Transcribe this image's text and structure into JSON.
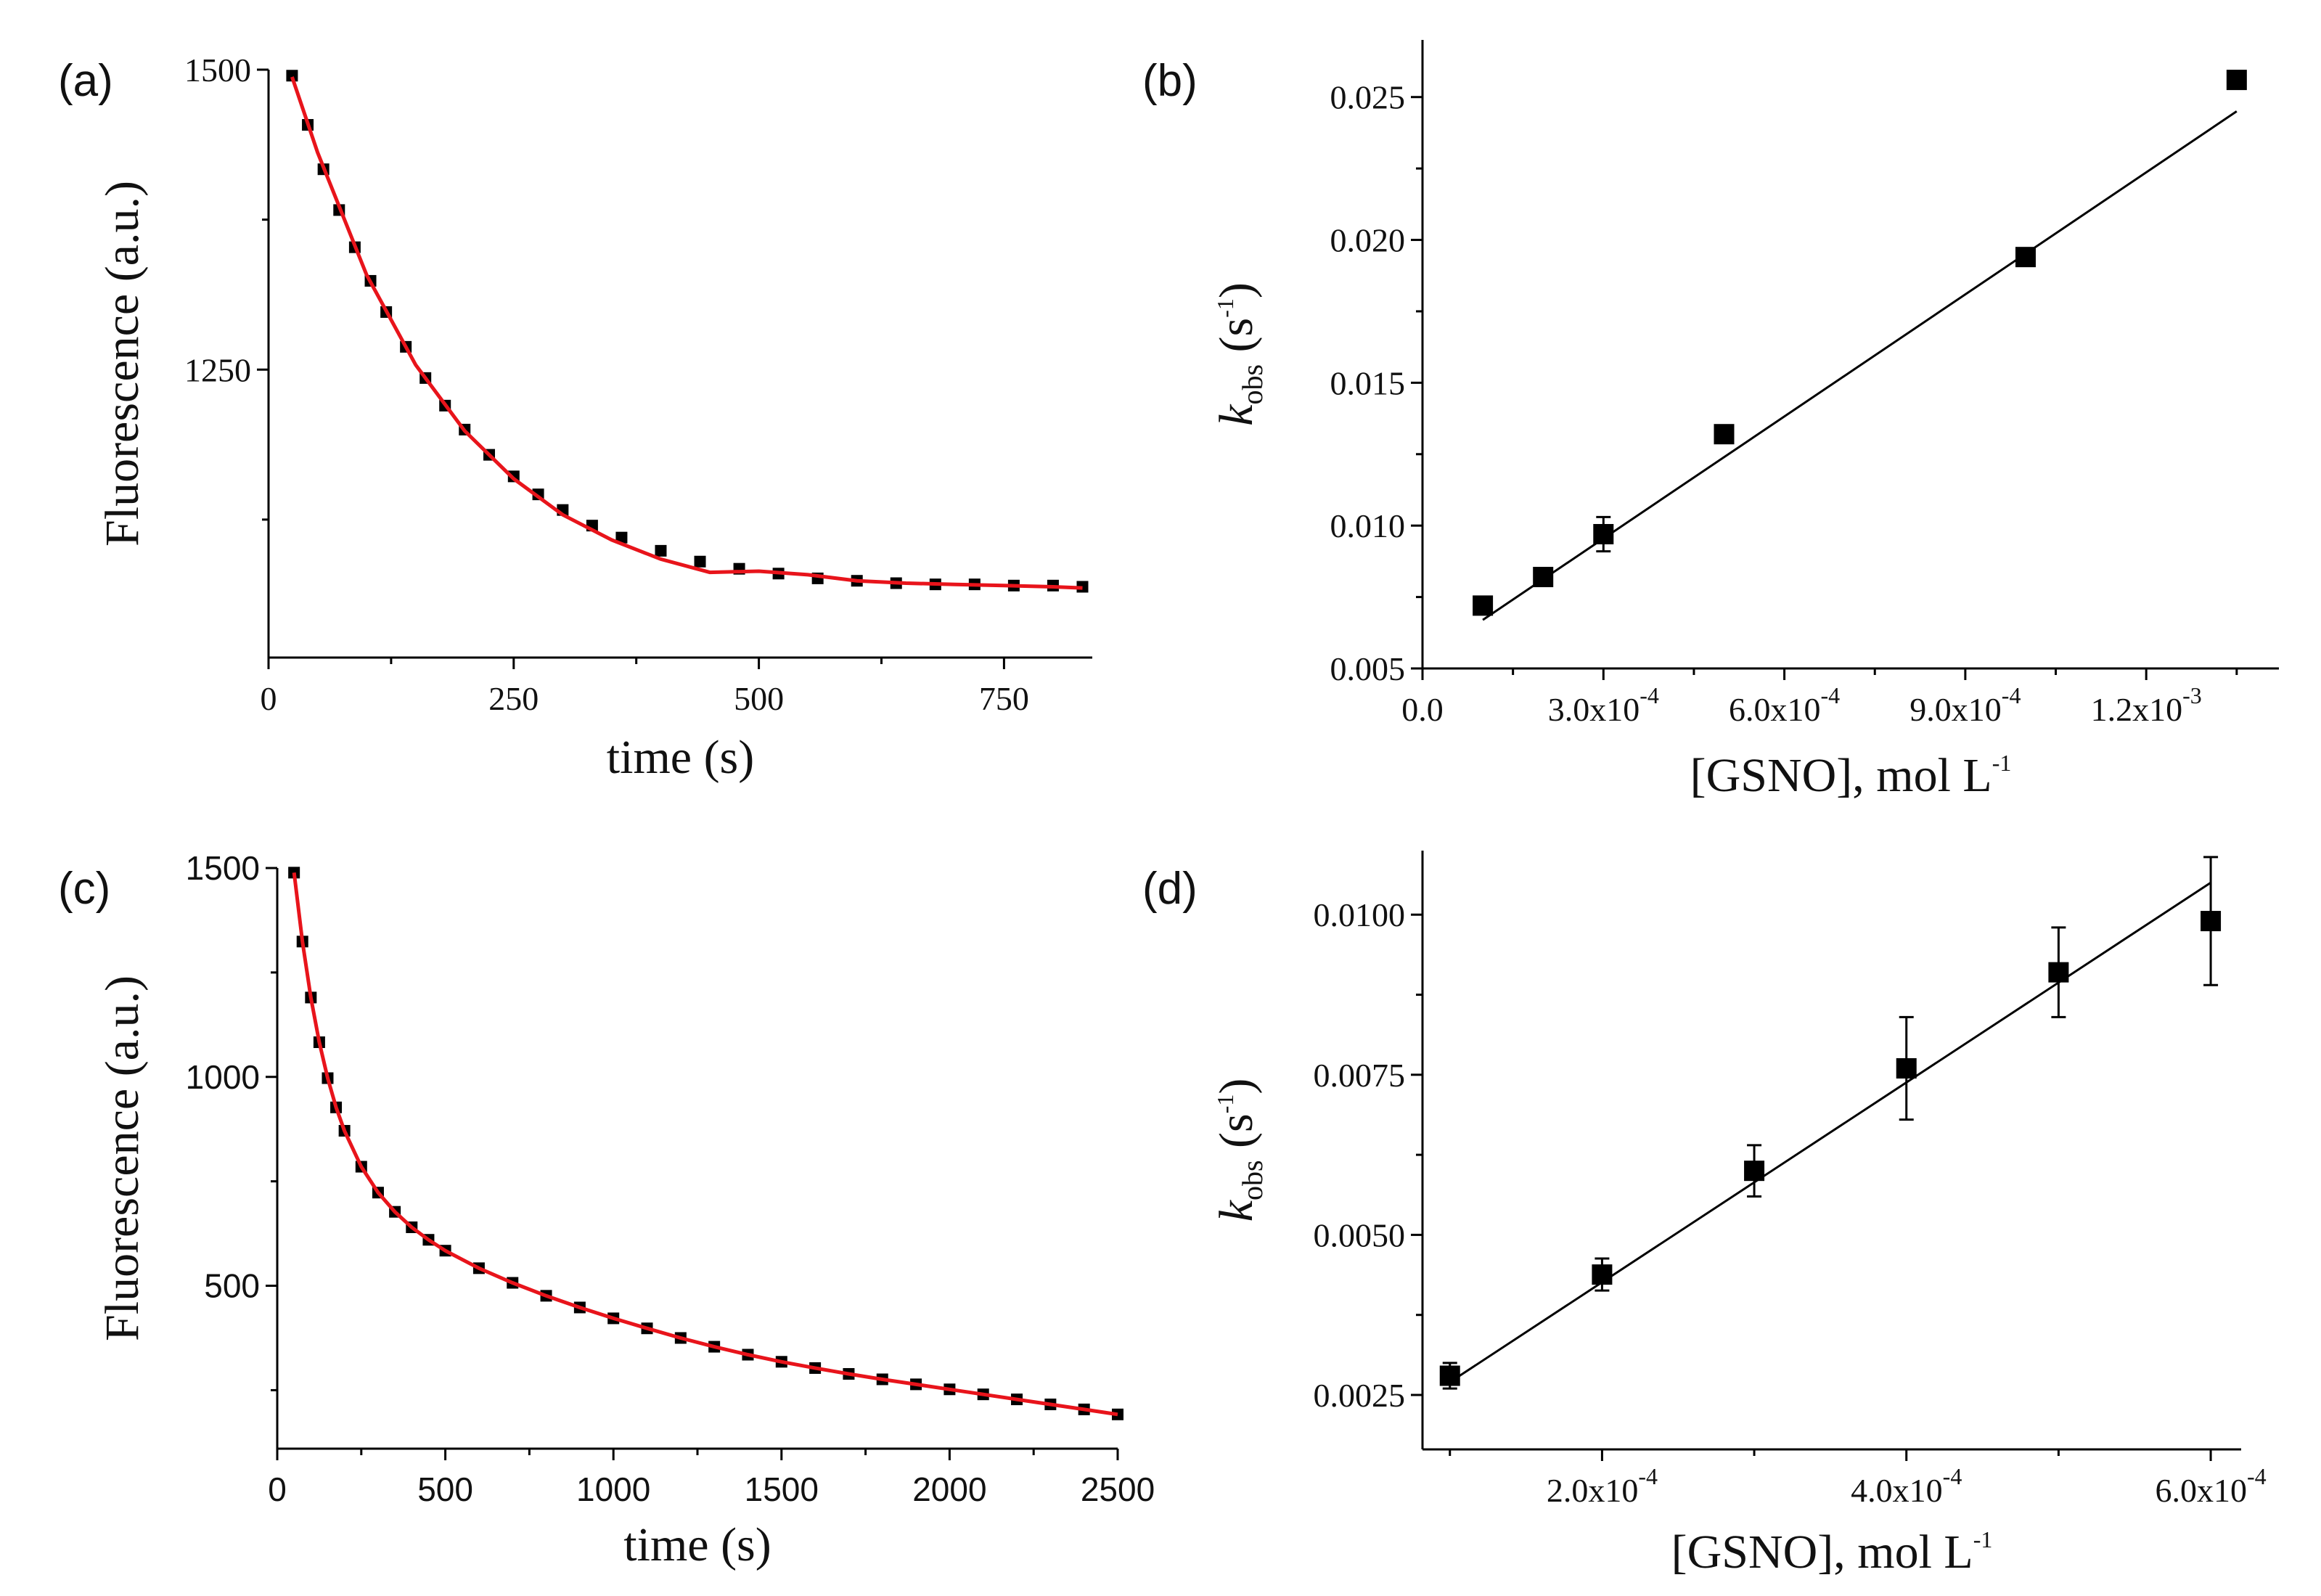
{
  "figure": {
    "panels": [
      {
        "id": "a",
        "label": "(a)"
      },
      {
        "id": "b",
        "label": "(b)"
      },
      {
        "id": "c",
        "label": "(c)"
      },
      {
        "id": "d",
        "label": "(d)"
      }
    ]
  },
  "chart_data": [
    {
      "panel": "(a)",
      "type": "scatter",
      "xlabel": "time (s)",
      "ylabel": "Fluorescence (a.u.)",
      "xlim": [
        0,
        840
      ],
      "ylim": [
        1010,
        1500
      ],
      "xticks": [
        0,
        250,
        500,
        750
      ],
      "xtick_labels": [
        "0",
        "250",
        "500",
        "750"
      ],
      "yticks": [
        1250,
        1500
      ],
      "ytick_labels": [
        "1250",
        "1500"
      ],
      "grid": false,
      "series": [
        {
          "role": "data",
          "marker": "square",
          "color": "#000000",
          "x": [
            24,
            40,
            56,
            72,
            88,
            104,
            120,
            140,
            160,
            180,
            200,
            225,
            250,
            275,
            300,
            330,
            360,
            400,
            440,
            480,
            520,
            560,
            600,
            640,
            680,
            720,
            760,
            800,
            830
          ],
          "y": [
            1495,
            1454,
            1417,
            1383,
            1352,
            1324,
            1298,
            1269,
            1243,
            1220,
            1200,
            1179,
            1161,
            1146,
            1133,
            1120,
            1110,
            1099,
            1090,
            1084,
            1080,
            1076,
            1074,
            1072,
            1071,
            1071,
            1070,
            1070,
            1069
          ]
        },
        {
          "role": "fit",
          "type": "line",
          "color": "#e8141b",
          "x": [
            24,
            50,
            100,
            150,
            200,
            250,
            300,
            350,
            400,
            450,
            500,
            550,
            600,
            650,
            700,
            750,
            800,
            830
          ],
          "y": [
            1494,
            1431,
            1329,
            1254,
            1199,
            1159,
            1129,
            1108,
            1092,
            1081,
            1082,
            1079,
            1074,
            1072,
            1071,
            1070,
            1069,
            1068
          ]
        }
      ]
    },
    {
      "panel": "(b)",
      "type": "scatter",
      "xlabel": "[GSNO], mol L-1",
      "ylabel": "k_obs (s-1)",
      "xlim": [
        0,
        0.00142
      ],
      "ylim": [
        0.005,
        0.027
      ],
      "xticks": [
        0,
        0.0003,
        0.0006,
        0.0009,
        0.0012
      ],
      "xtick_labels": [
        {
          "mant": "0.0",
          "exp": ""
        },
        {
          "mant": "3.0x10",
          "exp": "-4"
        },
        {
          "mant": "6.0x10",
          "exp": "-4"
        },
        {
          "mant": "9.0x10",
          "exp": "-4"
        },
        {
          "mant": "1.2x10",
          "exp": "-3"
        }
      ],
      "yticks": [
        0.005,
        0.01,
        0.015,
        0.02,
        0.025
      ],
      "ytick_labels": [
        "0.005",
        "0.010",
        "0.015",
        "0.020",
        "0.025"
      ],
      "grid": false,
      "series": [
        {
          "role": "data",
          "marker": "square",
          "color": "#000000",
          "x": [
            0.0001,
            0.0002,
            0.0003,
            0.0005,
            0.001,
            0.00135
          ],
          "y": [
            0.0072,
            0.0082,
            0.0097,
            0.0132,
            0.0194,
            0.0256
          ],
          "yerr": [
            0.0002,
            0.0002,
            0.0006,
            0.0002,
            0.0002,
            0.0002
          ]
        },
        {
          "role": "fit",
          "type": "line",
          "color": "#000000",
          "x": [
            0.0001,
            0.00135
          ],
          "y": [
            0.0067,
            0.0245
          ]
        }
      ]
    },
    {
      "panel": "(c)",
      "type": "scatter",
      "xlabel": "time (s)",
      "ylabel": "Fluorescence (a.u.)",
      "xlim": [
        0,
        2500
      ],
      "ylim": [
        110,
        1500
      ],
      "xticks": [
        0,
        500,
        1000,
        1500,
        2000,
        2500
      ],
      "xtick_labels": [
        "0",
        "500",
        "1000",
        "1500",
        "2000",
        "2500"
      ],
      "yticks": [
        500,
        1000,
        1500
      ],
      "ytick_labels": [
        "500",
        "1000",
        "1500"
      ],
      "grid": false,
      "series": [
        {
          "role": "data",
          "marker": "square",
          "color": "#000000",
          "x": [
            50,
            75,
            100,
            125,
            150,
            175,
            200,
            250,
            300,
            350,
            400,
            450,
            500,
            600,
            700,
            800,
            900,
            1000,
            1100,
            1200,
            1300,
            1400,
            1500,
            1600,
            1700,
            1800,
            1900,
            2000,
            2100,
            2200,
            2300,
            2400,
            2500
          ],
          "y": [
            1489,
            1324,
            1190,
            1083,
            997,
            927,
            871,
            785,
            723,
            677,
            640,
            610,
            584,
            542,
            507,
            476,
            448,
            422,
            398,
            375,
            354,
            335,
            318,
            303,
            289,
            276,
            264,
            252,
            240,
            228,
            216,
            204,
            192
          ]
        },
        {
          "role": "fit",
          "type": "line",
          "color": "#e8141b",
          "x": [
            50,
            75,
            100,
            125,
            150,
            175,
            200,
            250,
            300,
            350,
            400,
            450,
            500,
            600,
            700,
            800,
            900,
            1000,
            1100,
            1200,
            1300,
            1400,
            1500,
            1600,
            1700,
            1800,
            1900,
            2000,
            2100,
            2200,
            2300,
            2400,
            2500
          ],
          "y": [
            1489,
            1324,
            1190,
            1083,
            997,
            927,
            871,
            785,
            723,
            677,
            640,
            610,
            584,
            542,
            507,
            476,
            448,
            422,
            398,
            375,
            354,
            335,
            318,
            303,
            289,
            276,
            264,
            252,
            240,
            228,
            216,
            204,
            192
          ]
        }
      ]
    },
    {
      "panel": "(d)",
      "type": "scatter",
      "xlabel": "[GSNO], mol L-1",
      "ylabel": "k_obs (s-1)",
      "xlim": [
        8.2e-05,
        0.00062
      ],
      "ylim": [
        0.00165,
        0.011
      ],
      "xticks": [
        0.0002,
        0.0004,
        0.0006
      ],
      "xtick_labels": [
        {
          "mant": "2.0x10",
          "exp": "-4"
        },
        {
          "mant": "4.0x10",
          "exp": "-4"
        },
        {
          "mant": "6.0x10",
          "exp": "-4"
        }
      ],
      "yticks": [
        0.0025,
        0.005,
        0.0075,
        0.01
      ],
      "ytick_labels": [
        "0.0025",
        "0.0050",
        "0.0075",
        "0.0100"
      ],
      "grid": false,
      "series": [
        {
          "role": "data",
          "marker": "square",
          "color": "#000000",
          "x": [
            0.0001,
            0.0002,
            0.0003,
            0.0004,
            0.0005,
            0.0006
          ],
          "y": [
            0.0028,
            0.00438,
            0.006,
            0.0076,
            0.0091,
            0.0099
          ],
          "yerr": [
            0.0002,
            0.00025,
            0.0004,
            0.0008,
            0.0007,
            0.001
          ]
        },
        {
          "role": "fit",
          "type": "line",
          "color": "#000000",
          "x": [
            0.0001,
            0.0006
          ],
          "y": [
            0.0027,
            0.0105
          ]
        }
      ]
    }
  ]
}
